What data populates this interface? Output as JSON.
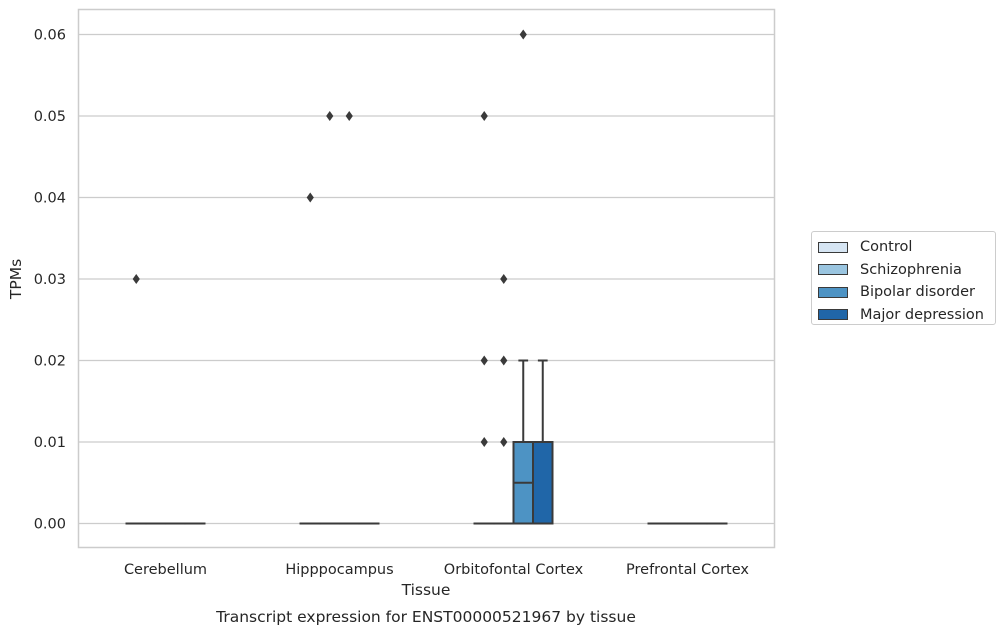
{
  "chart_data": {
    "type": "box",
    "title": "",
    "xlabel": "Tissue",
    "ylabel": "TPMs",
    "caption": "Transcript expression for ENST00000521967 by tissue",
    "categories": [
      "Cerebellum",
      "Hipppocampus",
      "Orbitofontal Cortex",
      "Prefrontal Cortex"
    ],
    "ylim": [
      -0.003,
      0.063
    ],
    "yticks": [
      "0.00",
      "0.01",
      "0.02",
      "0.03",
      "0.04",
      "0.05",
      "0.06"
    ],
    "grid": true,
    "legend_position": "right, outside",
    "series": [
      {
        "name": "Control",
        "color": "#d6e5f3",
        "boxes": [
          {
            "q1": 0,
            "median": 0,
            "q3": 0,
            "whisker_low": 0,
            "whisker_high": 0,
            "outliers": [
              0.03
            ]
          },
          {
            "q1": 0,
            "median": 0,
            "q3": 0,
            "whisker_low": 0,
            "whisker_high": 0,
            "outliers": [
              0.04
            ]
          },
          {
            "q1": 0,
            "median": 0,
            "q3": 0,
            "whisker_low": 0,
            "whisker_high": 0,
            "outliers": [
              0.01,
              0.02,
              0.05
            ]
          },
          {
            "q1": 0,
            "median": 0,
            "q3": 0,
            "whisker_low": 0,
            "whisker_high": 0,
            "outliers": []
          }
        ]
      },
      {
        "name": "Schizophrenia",
        "color": "#9ac5e0",
        "boxes": [
          {
            "q1": 0,
            "median": 0,
            "q3": 0,
            "whisker_low": 0,
            "whisker_high": 0,
            "outliers": []
          },
          {
            "q1": 0,
            "median": 0,
            "q3": 0,
            "whisker_low": 0,
            "whisker_high": 0,
            "outliers": [
              0.05
            ]
          },
          {
            "q1": 0,
            "median": 0,
            "q3": 0,
            "whisker_low": 0,
            "whisker_high": 0,
            "outliers": [
              0.01,
              0.02,
              0.03
            ]
          },
          {
            "q1": 0,
            "median": 0,
            "q3": 0,
            "whisker_low": 0,
            "whisker_high": 0,
            "outliers": []
          }
        ]
      },
      {
        "name": "Bipolar disorder",
        "color": "#4d93c4",
        "boxes": [
          {
            "q1": 0,
            "median": 0,
            "q3": 0,
            "whisker_low": 0,
            "whisker_high": 0,
            "outliers": []
          },
          {
            "q1": 0,
            "median": 0,
            "q3": 0,
            "whisker_low": 0,
            "whisker_high": 0,
            "outliers": [
              0.05
            ]
          },
          {
            "q1": 0,
            "median": 0.005,
            "q3": 0.01,
            "whisker_low": 0,
            "whisker_high": 0.02,
            "outliers": [
              0.06
            ]
          },
          {
            "q1": 0,
            "median": 0,
            "q3": 0,
            "whisker_low": 0,
            "whisker_high": 0,
            "outliers": []
          }
        ]
      },
      {
        "name": "Major depression",
        "color": "#2066a8",
        "boxes": [
          {
            "q1": 0,
            "median": 0,
            "q3": 0,
            "whisker_low": 0,
            "whisker_high": 0,
            "outliers": []
          },
          {
            "q1": 0,
            "median": 0,
            "q3": 0,
            "whisker_low": 0,
            "whisker_high": 0,
            "outliers": []
          },
          {
            "q1": 0,
            "median": 0,
            "q3": 0.01,
            "whisker_low": 0,
            "whisker_high": 0.02,
            "outliers": []
          },
          {
            "q1": 0,
            "median": 0,
            "q3": 0,
            "whisker_low": 0,
            "whisker_high": 0,
            "outliers": []
          }
        ]
      }
    ]
  }
}
